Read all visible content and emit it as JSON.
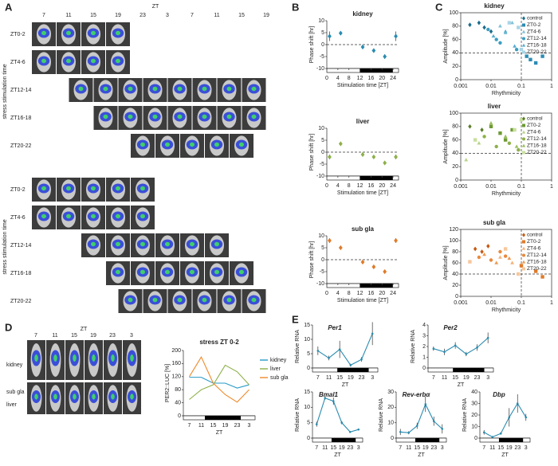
{
  "panels": [
    "A",
    "B",
    "C",
    "D",
    "E"
  ],
  "panel_a": {
    "axis_label": "ZT",
    "columns": [
      7,
      11,
      15,
      19,
      23,
      3,
      7,
      11,
      15,
      19
    ],
    "groups": [
      {
        "side_label": "stress stimulation time",
        "rows": [
          "ZT0-2",
          "ZT4-6",
          "ZT12-14",
          "ZT16-18",
          "ZT20-22"
        ]
      },
      {
        "side_label": "stress stimulation time",
        "rows": [
          "ZT0-2",
          "ZT4-6",
          "ZT12-14",
          "ZT16-18",
          "ZT20-22"
        ]
      }
    ]
  },
  "panel_d_images": {
    "axis_label": "ZT",
    "columns": [
      7,
      11,
      15,
      19,
      23,
      3
    ],
    "rows": [
      "kidney",
      "sub gla",
      "liver"
    ]
  },
  "chart_data": [
    {
      "type": "scatter",
      "title": "kidney",
      "xlabel": "Stimulation time [ZT]",
      "ylabel": "Phase shift [hr]",
      "x": [
        1,
        5,
        13,
        17,
        21,
        25
      ],
      "values": [
        3.5,
        4.8,
        -1,
        -2.5,
        -5,
        3.5
      ],
      "errors": [
        2,
        0.5,
        0.5,
        0.5,
        1,
        2
      ],
      "color": "#2a8cb0",
      "marker": "diamond",
      "xlim": [
        0,
        26
      ],
      "xticks": [
        0,
        4,
        8,
        12,
        16,
        20,
        24
      ],
      "ylim": [
        -10,
        10
      ],
      "yticks": [
        -10,
        -5,
        0,
        5,
        10
      ],
      "hline": 0
    },
    {
      "type": "scatter",
      "title": "liver",
      "xlabel": "Stimulation time [ZT]",
      "ylabel": "Phase shift [hr]",
      "x": [
        1,
        5,
        13,
        17,
        21,
        25
      ],
      "values": [
        -2,
        3.5,
        -1,
        -2,
        -4.5,
        -2
      ],
      "errors": [
        1,
        0.5,
        0.5,
        0.5,
        0.5,
        1
      ],
      "color": "#8db04a",
      "marker": "diamond",
      "xlim": [
        0,
        26
      ],
      "xticks": [
        0,
        4,
        8,
        12,
        16,
        20,
        24
      ],
      "ylim": [
        -10,
        10
      ],
      "yticks": [
        -10,
        -5,
        0,
        5,
        10
      ],
      "hline": 0
    },
    {
      "type": "scatter",
      "title": "sub gla",
      "xlabel": "Stimulation time [ZT]",
      "ylabel": "Phase shift [hr]",
      "x": [
        1,
        5,
        13,
        17,
        21,
        25
      ],
      "values": [
        8,
        5,
        -1,
        -3,
        -5,
        8
      ],
      "errors": [
        1,
        0.5,
        0.5,
        0.5,
        0.5,
        1
      ],
      "color": "#e07b2a",
      "marker": "diamond",
      "xlim": [
        0,
        26
      ],
      "xticks": [
        0,
        4,
        8,
        12,
        16,
        20,
        24
      ],
      "ylim": [
        -10,
        10
      ],
      "yticks": [
        -10,
        -5,
        0,
        5,
        10
      ],
      "hline": 0
    },
    {
      "type": "scatter",
      "title": "kidney",
      "xlabel": "Rhythmicity",
      "ylabel": "Amplitude [%]",
      "xscale": "log",
      "xlim": [
        0.001,
        1
      ],
      "xticks": [
        0.001,
        0.01,
        0.1,
        1
      ],
      "ylim": [
        0,
        100
      ],
      "yticks": [
        0,
        20,
        40,
        60,
        80,
        100
      ],
      "vline": 0.1,
      "hline": 40,
      "legend": "upper right",
      "series": [
        {
          "name": "control",
          "color": "#1b6d8c",
          "marker": "diamond",
          "x": [
            0.002,
            0.004,
            0.006,
            0.01
          ],
          "values": [
            82,
            85,
            78,
            72
          ]
        },
        {
          "name": "ZT0-2",
          "color": "#2b8cb4",
          "marker": "square",
          "x": [
            0.15,
            0.2,
            0.3,
            0.5
          ],
          "values": [
            35,
            30,
            25,
            35
          ]
        },
        {
          "name": "ZT4-6",
          "color": "#7fc0d8",
          "marker": "triangle",
          "x": [
            0.02,
            0.03,
            0.05
          ],
          "values": [
            80,
            70,
            85
          ]
        },
        {
          "name": "ZT12-14",
          "color": "#3c9dc0",
          "marker": "circle",
          "x": [
            0.008,
            0.015,
            0.02,
            0.07
          ],
          "values": [
            75,
            60,
            55,
            45
          ]
        },
        {
          "name": "ZT16-18",
          "color": "#5aaed0",
          "marker": "triangle",
          "x": [
            0.012,
            0.03,
            0.06
          ],
          "values": [
            65,
            72,
            50
          ]
        },
        {
          "name": "ZT20-22",
          "color": "#a9d4e6",
          "marker": "square",
          "x": [
            0.04,
            0.08,
            0.1
          ],
          "values": [
            85,
            78,
            45
          ]
        }
      ]
    },
    {
      "type": "scatter",
      "title": "liver",
      "xlabel": "Rhythmicity",
      "ylabel": "Amplitude [%]",
      "xscale": "log",
      "xlim": [
        0.001,
        1
      ],
      "xticks": [
        0.001,
        0.01,
        0.1,
        1
      ],
      "ylim": [
        0,
        100
      ],
      "yticks": [
        0,
        20,
        40,
        60,
        80,
        100
      ],
      "vline": 0.1,
      "hline": 40,
      "legend": "upper right",
      "series": [
        {
          "name": "control",
          "color": "#5a7d2a",
          "marker": "diamond",
          "x": [
            0.002,
            0.005
          ],
          "values": [
            80,
            75
          ]
        },
        {
          "name": "ZT0-2",
          "color": "#6f9a34",
          "marker": "square",
          "x": [
            0.01,
            0.02,
            0.03,
            0.05
          ],
          "values": [
            80,
            70,
            60,
            75
          ]
        },
        {
          "name": "ZT4-6",
          "color": "#b8d48a",
          "marker": "triangle",
          "x": [
            0.0015,
            0.004
          ],
          "values": [
            30,
            55
          ]
        },
        {
          "name": "ZT12-14",
          "color": "#8db04a",
          "marker": "circle",
          "x": [
            0.006,
            0.015,
            0.04,
            0.08
          ],
          "values": [
            65,
            50,
            55,
            45
          ]
        },
        {
          "name": "ZT16-18",
          "color": "#9cbf5f",
          "marker": "triangle",
          "x": [
            0.01,
            0.03,
            0.07
          ],
          "values": [
            85,
            65,
            50
          ]
        },
        {
          "name": "ZT20-22",
          "color": "#c9df9f",
          "marker": "square",
          "x": [
            0.003,
            0.06,
            0.1
          ],
          "values": [
            60,
            75,
            90
          ]
        }
      ]
    },
    {
      "type": "scatter",
      "title": "sub gla",
      "xlabel": "Rhythmicity",
      "ylabel": "Amplitude [%]",
      "xscale": "log",
      "xlim": [
        0.001,
        1
      ],
      "xticks": [
        0.001,
        0.01,
        0.1,
        1
      ],
      "ylim": [
        0,
        120
      ],
      "yticks": [
        0,
        20,
        40,
        60,
        80,
        100,
        120
      ],
      "vline": 0.1,
      "hline": 40,
      "legend": "upper right",
      "series": [
        {
          "name": "control",
          "color": "#c55a12",
          "marker": "diamond",
          "x": [
            0.003,
            0.005,
            0.008
          ],
          "values": [
            85,
            80,
            90
          ]
        },
        {
          "name": "ZT0-2",
          "color": "#e07b2a",
          "marker": "square",
          "x": [
            0.1,
            0.3,
            0.5
          ],
          "values": [
            55,
            45,
            35
          ]
        },
        {
          "name": "ZT4-6",
          "color": "#f5b27a",
          "marker": "triangle",
          "x": [
            0.02,
            0.05
          ],
          "values": [
            70,
            60
          ]
        },
        {
          "name": "ZT12-14",
          "color": "#e8893c",
          "marker": "circle",
          "x": [
            0.004,
            0.01,
            0.02,
            0.03
          ],
          "values": [
            70,
            65,
            80,
            72
          ]
        },
        {
          "name": "ZT16-18",
          "color": "#ec9a52",
          "marker": "triangle",
          "x": [
            0.006,
            0.015,
            0.04
          ],
          "values": [
            75,
            60,
            68
          ]
        },
        {
          "name": "ZT20-22",
          "color": "#f7c79c",
          "marker": "square",
          "x": [
            0.002,
            0.03,
            0.08
          ],
          "values": [
            62,
            85,
            40
          ]
        }
      ]
    },
    {
      "type": "line",
      "title": "stress ZT 0-2",
      "xlabel": "ZT",
      "ylabel": "PER2::LUC [%]",
      "categories": [
        7,
        11,
        15,
        19,
        23,
        3
      ],
      "ylim": [
        0,
        200
      ],
      "yticks": [
        0,
        40,
        80,
        120,
        160,
        200
      ],
      "legend": "right",
      "series": [
        {
          "name": "kidney",
          "color": "#2a9ac8",
          "values": [
            118,
            118,
            100,
            100,
            85,
            95
          ]
        },
        {
          "name": "liver",
          "color": "#8db04a",
          "values": [
            50,
            80,
            95,
            155,
            135,
            95
          ]
        },
        {
          "name": "sub gla",
          "color": "#ee8a2a",
          "values": [
            120,
            180,
            100,
            65,
            42,
            80
          ]
        }
      ]
    },
    {
      "type": "line",
      "title": "Per1",
      "xlabel": "ZT",
      "ylabel": "Relative RNA",
      "categories": [
        7,
        11,
        15,
        19,
        23,
        3
      ],
      "values": [
        6,
        3.5,
        6.5,
        1,
        3,
        12
      ],
      "errors": [
        1.5,
        0.8,
        3,
        0.5,
        0.8,
        4
      ],
      "color": "#2a8cb0",
      "ylim": [
        0,
        15
      ],
      "yticks": [
        0,
        5,
        10,
        15
      ]
    },
    {
      "type": "line",
      "title": "Per2",
      "xlabel": "ZT",
      "ylabel": "Relative RNA",
      "categories": [
        7,
        11,
        15,
        19,
        23,
        3
      ],
      "values": [
        1.8,
        1.5,
        2.1,
        1.3,
        1.9,
        2.8
      ],
      "errors": [
        0.2,
        0.3,
        0.3,
        0.2,
        0.3,
        0.5
      ],
      "color": "#2a8cb0",
      "ylim": [
        0,
        4
      ],
      "yticks": [
        0,
        1,
        2,
        3,
        4
      ]
    },
    {
      "type": "line",
      "title": "Bmal1",
      "xlabel": "ZT",
      "ylabel": "Relative RNA",
      "categories": [
        7,
        11,
        15,
        19,
        23,
        3
      ],
      "values": [
        4.5,
        13,
        12,
        5,
        2,
        2.8
      ],
      "errors": [
        0.8,
        0.5,
        1.2,
        0.5,
        0.3,
        0.3
      ],
      "color": "#2a8cb0",
      "ylim": [
        0,
        15
      ],
      "yticks": [
        0,
        5,
        10,
        15
      ]
    },
    {
      "type": "line",
      "title": "Rev-erbα",
      "xlabel": "ZT",
      "ylabel": "Relative RNA",
      "categories": [
        7,
        11,
        15,
        19,
        23,
        3
      ],
      "values": [
        4,
        3.5,
        8,
        22,
        11,
        6
      ],
      "errors": [
        2,
        1,
        2,
        5,
        3,
        3
      ],
      "color": "#2a8cb0",
      "ylim": [
        0,
        30
      ],
      "yticks": [
        0,
        10,
        20,
        30
      ]
    },
    {
      "type": "line",
      "title": "Dbp",
      "xlabel": "ZT",
      "ylabel": "Relative RNA",
      "categories": [
        7,
        11,
        15,
        19,
        23,
        3
      ],
      "values": [
        5,
        1,
        4,
        18,
        30,
        18
      ],
      "errors": [
        2,
        0.5,
        1,
        8,
        8,
        3
      ],
      "color": "#2a8cb0",
      "ylim": [
        0,
        40
      ],
      "yticks": [
        0,
        10,
        20,
        30,
        40
      ]
    }
  ]
}
